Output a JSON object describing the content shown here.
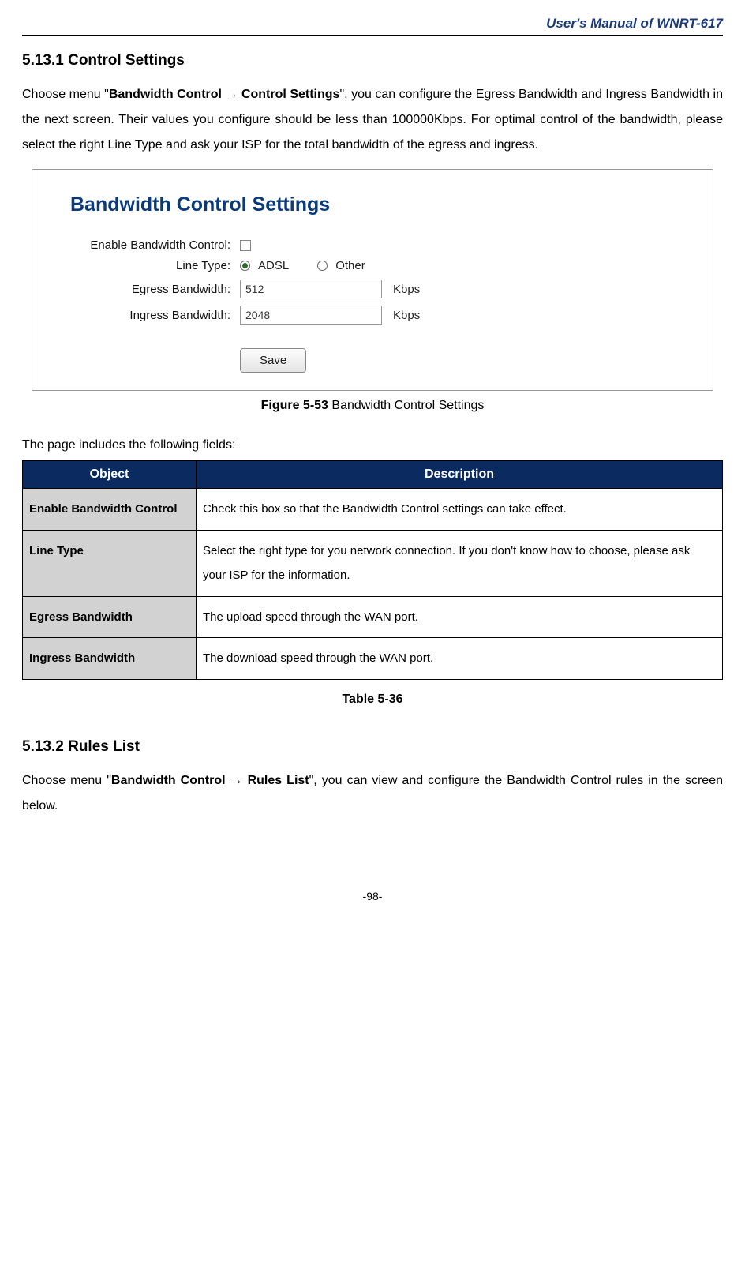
{
  "header": {
    "doc_title": "User's Manual of WNRT-617"
  },
  "section_1": {
    "number": "5.13.1",
    "title": "Control Settings",
    "intro_pre": "Choose menu \"",
    "intro_bold": "Bandwidth Control → Control Settings",
    "intro_post": "\", you can configure the Egress Bandwidth and Ingress Bandwidth in the next screen. Their values you configure should be less than 100000Kbps. For optimal control of the bandwidth, please select the right Line Type and ask your ISP for the total bandwidth of the egress and ingress."
  },
  "figure": {
    "panel_title": "Bandwidth Control Settings",
    "labels": {
      "enable": "Enable Bandwidth Control:",
      "line_type": "Line Type:",
      "egress": "Egress Bandwidth:",
      "ingress": "Ingress Bandwidth:"
    },
    "line_type_options": {
      "adsl": "ADSL",
      "other": "Other",
      "selected": "adsl"
    },
    "values": {
      "egress": "512",
      "ingress": "2048",
      "unit": "Kbps"
    },
    "save_label": "Save",
    "caption_bold": "Figure 5-53",
    "caption_rest": " Bandwidth Control Settings"
  },
  "fields_intro": "The page includes the following fields:",
  "table": {
    "header_object": "Object",
    "header_description": "Description",
    "rows": [
      {
        "object": "Enable Bandwidth Control",
        "description": "Check this box so that the Bandwidth Control settings can take effect."
      },
      {
        "object": "Line Type",
        "description": "Select the right type for you network connection. If you don't know how to choose, please ask your ISP for the information."
      },
      {
        "object": "Egress Bandwidth",
        "description": "The upload speed through the WAN port."
      },
      {
        "object": "Ingress Bandwidth",
        "description": "The download speed through the WAN port."
      }
    ],
    "caption": "Table 5-36"
  },
  "section_2": {
    "number": "5.13.2",
    "title": "Rules List",
    "intro_pre": "Choose menu \"",
    "intro_bold": "Bandwidth Control → Rules List",
    "intro_post": "\", you can view and configure the Bandwidth Control rules in the screen below."
  },
  "page_number": "-98-",
  "colors": {
    "header_blue": "#1a3a7a",
    "panel_title_blue": "#0a3a7a",
    "table_header_bg": "#0a2a60",
    "table_obj_bg": "#d2d2d2"
  }
}
